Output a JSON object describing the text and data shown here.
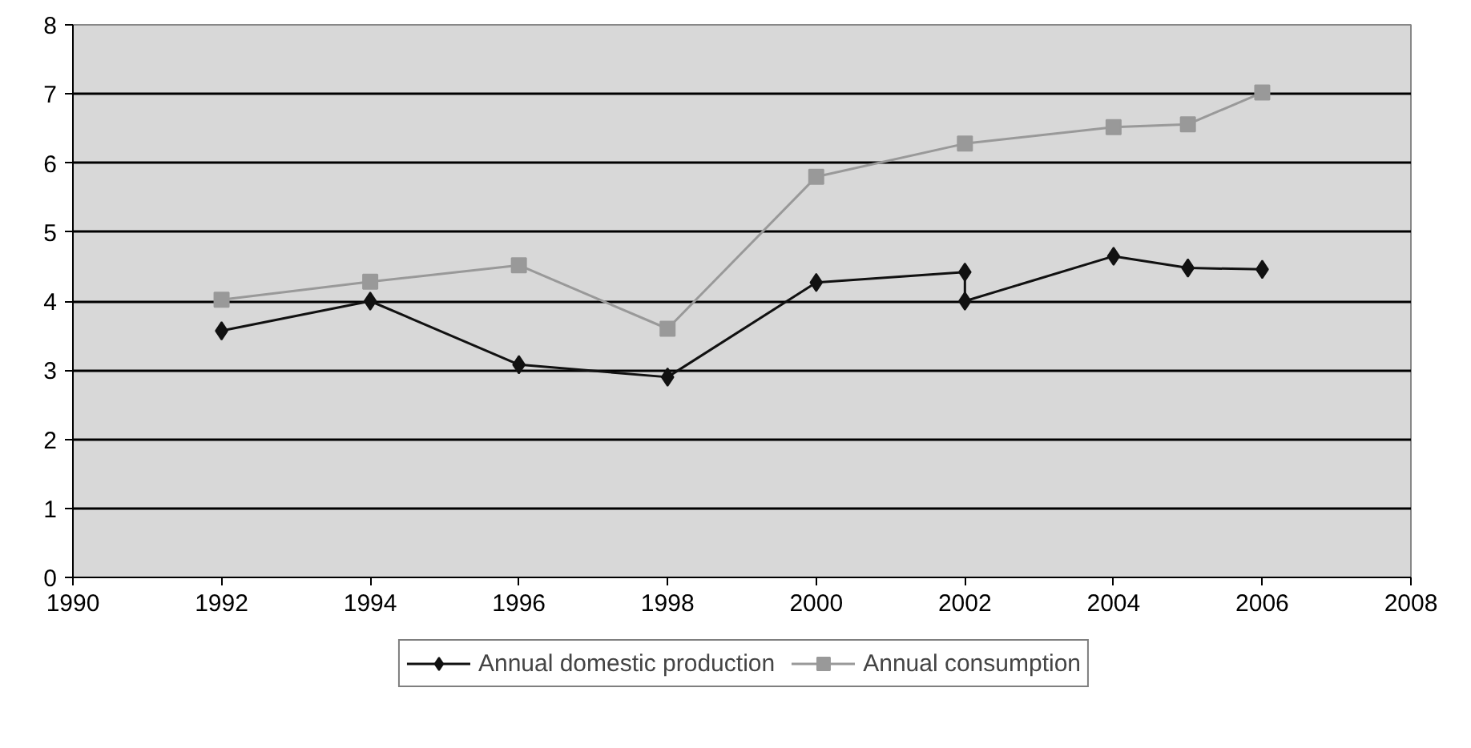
{
  "chart_data": {
    "type": "line",
    "series": [
      {
        "name": "Annual domestic production",
        "color": "#111111",
        "marker": "diamond",
        "x": [
          1992,
          1994,
          1996,
          1998,
          2000,
          2002,
          2002,
          2004,
          2005,
          2006
        ],
        "values": [
          3.57,
          4.0,
          3.08,
          2.9,
          4.27,
          4.42,
          4.0,
          4.65,
          4.48,
          4.46
        ]
      },
      {
        "name": "Annual consumption",
        "color": "#999999",
        "marker": "square",
        "x": [
          1992,
          1994,
          1996,
          1998,
          2000,
          2002,
          2004,
          2005,
          2006
        ],
        "values": [
          4.02,
          4.28,
          4.52,
          3.6,
          5.8,
          6.28,
          6.52,
          6.56,
          7.02
        ]
      }
    ],
    "xlim": [
      1990,
      2008
    ],
    "xticks": [
      1990,
      1992,
      1994,
      1996,
      1998,
      2000,
      2002,
      2004,
      2006,
      2008
    ],
    "ylim": [
      0,
      8
    ],
    "yticks": [
      0,
      1,
      2,
      3,
      4,
      5,
      6,
      7,
      8
    ],
    "grid": "y",
    "legend": "bottom"
  }
}
